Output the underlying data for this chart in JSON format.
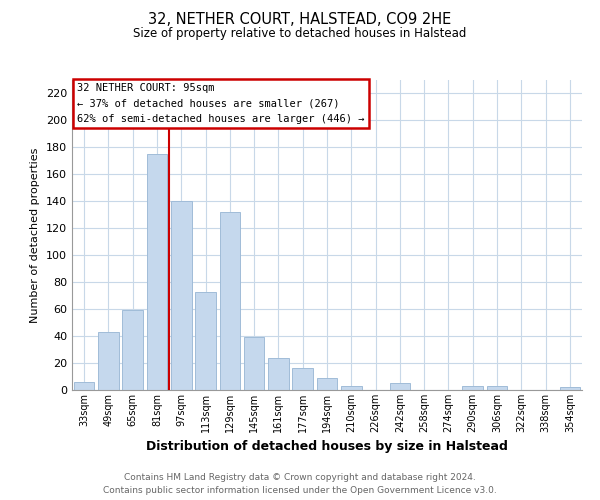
{
  "title": "32, NETHER COURT, HALSTEAD, CO9 2HE",
  "subtitle": "Size of property relative to detached houses in Halstead",
  "xlabel": "Distribution of detached houses by size in Halstead",
  "ylabel": "Number of detached properties",
  "bar_color": "#c5d8ed",
  "bar_edge_color": "#a0bcd8",
  "vline_color": "#cc0000",
  "categories": [
    "33sqm",
    "49sqm",
    "65sqm",
    "81sqm",
    "97sqm",
    "113sqm",
    "129sqm",
    "145sqm",
    "161sqm",
    "177sqm",
    "194sqm",
    "210sqm",
    "226sqm",
    "242sqm",
    "258sqm",
    "274sqm",
    "290sqm",
    "306sqm",
    "322sqm",
    "338sqm",
    "354sqm"
  ],
  "values": [
    6,
    43,
    59,
    175,
    140,
    73,
    132,
    39,
    24,
    16,
    9,
    3,
    0,
    5,
    0,
    0,
    3,
    3,
    0,
    0,
    2
  ],
  "ylim": [
    0,
    230
  ],
  "yticks": [
    0,
    20,
    40,
    60,
    80,
    100,
    120,
    140,
    160,
    180,
    200,
    220
  ],
  "annotation_title": "32 NETHER COURT: 95sqm",
  "annotation_line1": "← 37% of detached houses are smaller (267)",
  "annotation_line2": "62% of semi-detached houses are larger (446) →",
  "annotation_box_color": "#ffffff",
  "annotation_box_edge_color": "#cc0000",
  "footer1": "Contains HM Land Registry data © Crown copyright and database right 2024.",
  "footer2": "Contains public sector information licensed under the Open Government Licence v3.0.",
  "background_color": "#ffffff",
  "grid_color": "#c8d8e8",
  "vline_position": 3.5
}
